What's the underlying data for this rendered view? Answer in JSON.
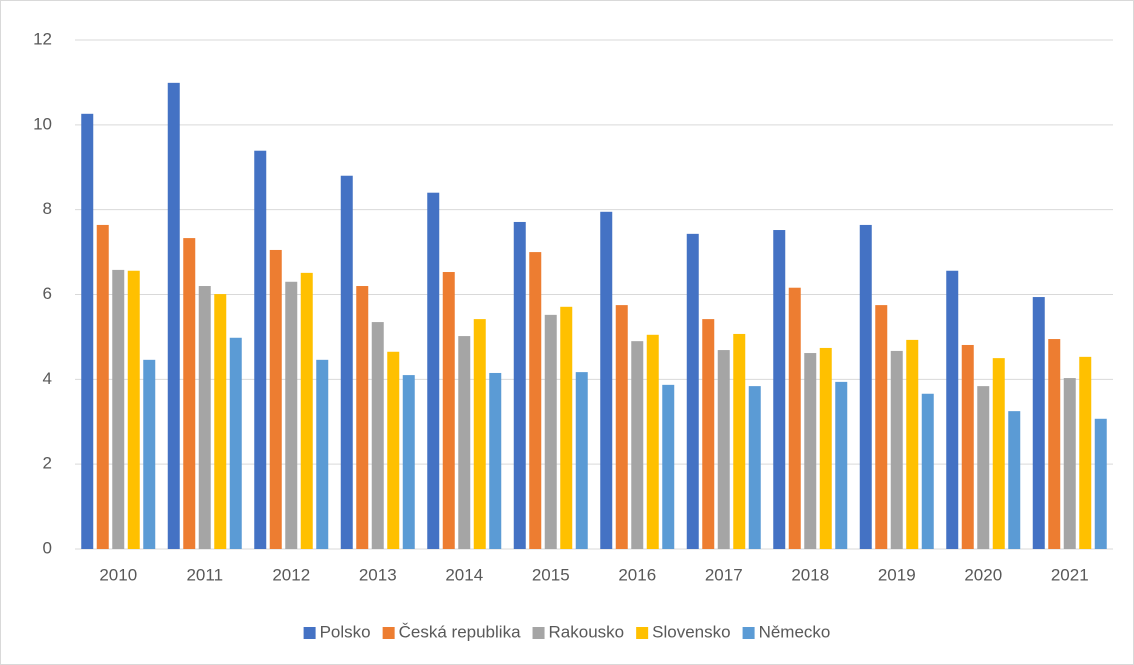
{
  "chart_data": {
    "type": "bar",
    "categories": [
      "2010",
      "2011",
      "2012",
      "2013",
      "2014",
      "2015",
      "2016",
      "2017",
      "2018",
      "2019",
      "2020",
      "2021"
    ],
    "series": [
      {
        "name": "Polsko",
        "color": "#4472c4",
        "values": [
          10.26,
          10.99,
          9.39,
          8.8,
          8.4,
          7.71,
          7.95,
          7.43,
          7.52,
          7.64,
          6.56,
          5.94
        ]
      },
      {
        "name": "Česká republika",
        "color": "#ed7d31",
        "values": [
          7.64,
          7.33,
          7.05,
          6.2,
          6.53,
          7.0,
          5.75,
          5.42,
          6.16,
          5.75,
          4.81,
          4.95
        ]
      },
      {
        "name": "Rakousko",
        "color": "#a5a5a5",
        "values": [
          6.58,
          6.2,
          6.3,
          5.35,
          5.02,
          5.52,
          4.9,
          4.69,
          4.62,
          4.67,
          3.84,
          4.03
        ]
      },
      {
        "name": "Slovensko",
        "color": "#ffc000",
        "values": [
          6.56,
          6.01,
          6.51,
          4.65,
          5.42,
          5.71,
          5.05,
          5.07,
          4.74,
          4.93,
          4.5,
          4.53
        ]
      },
      {
        "name": "Německo",
        "color": "#5b9bd5",
        "values": [
          4.46,
          4.98,
          4.46,
          4.1,
          4.15,
          4.17,
          3.87,
          3.84,
          3.94,
          3.66,
          3.25,
          3.07
        ]
      }
    ],
    "ylim": [
      0,
      12
    ],
    "yticks": [
      0,
      2,
      4,
      6,
      8,
      10,
      12
    ],
    "grid": true,
    "legend": "bottom"
  }
}
